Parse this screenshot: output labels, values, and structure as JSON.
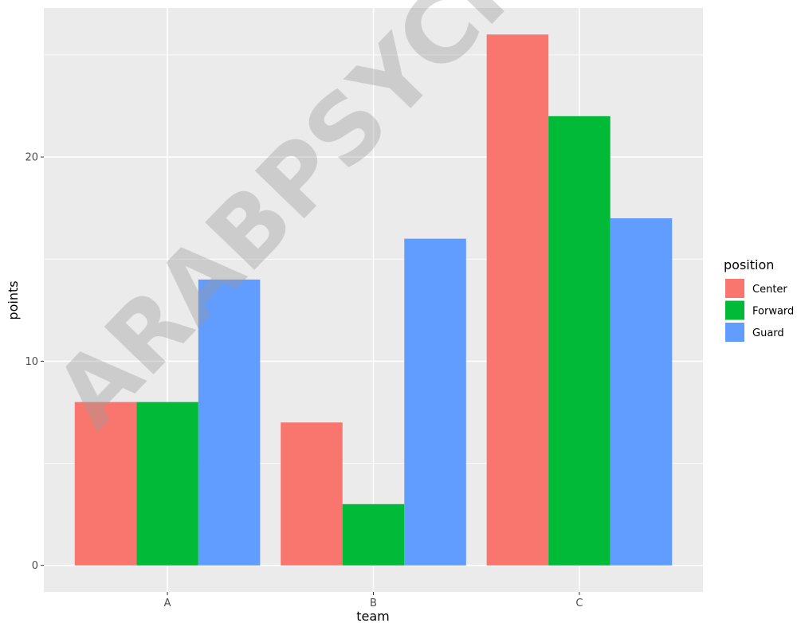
{
  "chart_data": {
    "type": "bar",
    "categories": [
      "A",
      "B",
      "C"
    ],
    "series": [
      {
        "name": "Center",
        "values": [
          8,
          7,
          26
        ],
        "color": "#F8766D"
      },
      {
        "name": "Forward",
        "values": [
          8,
          3,
          22
        ],
        "color": "#00BA38"
      },
      {
        "name": "Guard",
        "values": [
          14,
          16,
          17
        ],
        "color": "#619CFF"
      }
    ],
    "xlabel": "team",
    "ylabel": "points",
    "ylim": [
      -1.3,
      27.3
    ],
    "y_ticks": [
      0,
      10,
      20
    ],
    "legend_title": "position",
    "legend_position": "right",
    "grid": true,
    "panel_background": "#EBEBEB"
  },
  "watermark": "ARABPSYCH"
}
